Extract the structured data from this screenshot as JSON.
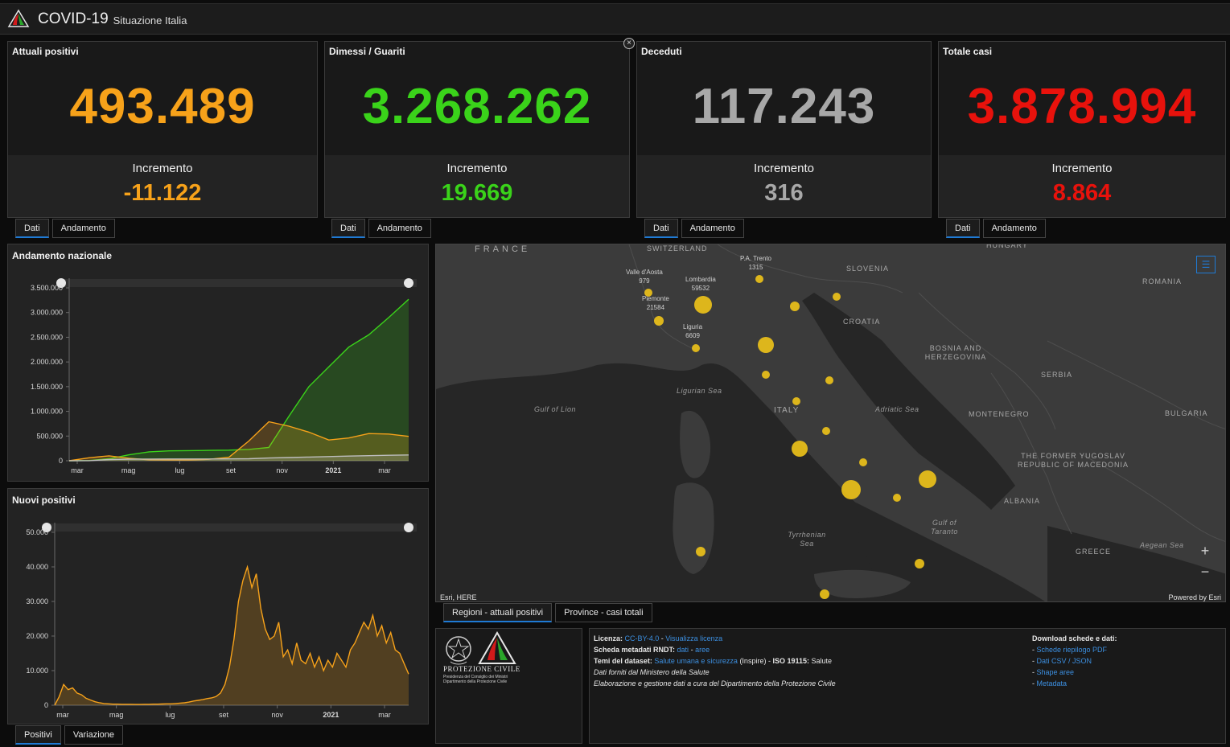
{
  "header": {
    "title": "COVID-19",
    "subtitle": "Situazione Italia"
  },
  "cards": [
    {
      "title": "Attuali positivi",
      "value": "493.489",
      "inc_label": "Incremento",
      "inc_value": "-11.122",
      "color": "#f7a21a",
      "tabs": [
        "Dati",
        "Andamento"
      ]
    },
    {
      "title": "Dimessi / Guariti",
      "value": "3.268.262",
      "inc_label": "Incremento",
      "inc_value": "19.669",
      "color": "#3ad31a",
      "tabs": [
        "Dati",
        "Andamento"
      ]
    },
    {
      "title": "Deceduti",
      "value": "117.243",
      "inc_label": "Incremento",
      "inc_value": "316",
      "color": "#a8a8a8",
      "tabs": [
        "Dati",
        "Andamento"
      ]
    },
    {
      "title": "Totale casi",
      "value": "3.878.994",
      "inc_label": "Incremento",
      "inc_value": "8.864",
      "color": "#e8120c",
      "tabs": [
        "Dati",
        "Andamento"
      ]
    }
  ],
  "chart_data": [
    {
      "type": "area",
      "title": "Andamento nazionale",
      "x_labels": [
        "mar",
        "mag",
        "lug",
        "set",
        "nov",
        "2021",
        "mar"
      ],
      "y_ticks": [
        "0",
        "500.000",
        "1.000.000",
        "1.500.000",
        "2.000.000",
        "2.500.000",
        "3.000.000",
        "3.500.000"
      ],
      "ylim": [
        0,
        3500000
      ],
      "series": [
        {
          "color": "#3ad31a",
          "values": [
            0,
            5000,
            40000,
            120000,
            180000,
            200000,
            205000,
            210000,
            215000,
            230000,
            270000,
            900000,
            1500000,
            1900000,
            2300000,
            2550000,
            2900000,
            3268262
          ]
        },
        {
          "color": "#f7a21a",
          "values": [
            0,
            60000,
            100000,
            50000,
            20000,
            14000,
            15000,
            30000,
            70000,
            400000,
            790000,
            700000,
            580000,
            420000,
            460000,
            550000,
            540000,
            493489
          ]
        },
        {
          "color": "#bdbdbd",
          "values": [
            0,
            2000,
            25000,
            33000,
            35000,
            35500,
            36000,
            36500,
            38000,
            40000,
            55000,
            65000,
            75000,
            85000,
            95000,
            102000,
            110000,
            117243
          ]
        }
      ]
    },
    {
      "type": "area",
      "title": "Nuovi positivi",
      "x_labels": [
        "mar",
        "mag",
        "lug",
        "set",
        "nov",
        "2021",
        "mar"
      ],
      "y_ticks": [
        "0",
        "10.000",
        "20.000",
        "30.000",
        "40.000",
        "50.000"
      ],
      "ylim": [
        0,
        50000
      ],
      "series": [
        {
          "color": "#f7a21a",
          "values": [
            0,
            2500,
            6000,
            4500,
            5000,
            3500,
            3000,
            2000,
            1500,
            1000,
            700,
            500,
            400,
            300,
            300,
            250,
            250,
            250,
            200,
            200,
            250,
            250,
            300,
            300,
            350,
            400,
            400,
            500,
            600,
            700,
            900,
            1200,
            1400,
            1600,
            1900,
            2100,
            2500,
            3500,
            6000,
            11000,
            19000,
            30000,
            36000,
            40000,
            34000,
            38000,
            28000,
            22000,
            19000,
            20000,
            24000,
            14000,
            16000,
            12000,
            18000,
            13000,
            12000,
            15000,
            11000,
            14000,
            10000,
            13000,
            11000,
            15000,
            13000,
            11000,
            16000,
            18000,
            21000,
            24000,
            22000,
            26000,
            20000,
            23000,
            18000,
            21000,
            16000,
            15000,
            12000,
            9000
          ]
        }
      ]
    }
  ],
  "chart_tabs": [
    "Positivi",
    "Variazione"
  ],
  "map": {
    "countries": [
      "FRANCE",
      "SWITZERLAND",
      "HUNGARY",
      "SLOVENIA",
      "ROMANIA",
      "CROATIA",
      "BOSNIA AND HERZEGOVINA",
      "SERBIA",
      "ITALY",
      "MONTENEGRO",
      "BULGARIA",
      "THE FORMER YUGOSLAV REPUBLIC OF MACEDONIA",
      "ALBANIA",
      "GREECE"
    ],
    "seas": [
      "Gulf of Lion",
      "Ligurian Sea",
      "Adriatic Sea",
      "Tyrrhenian Sea",
      "Gulf of Taranto",
      "Aegean Sea"
    ],
    "regions": [
      {
        "name": "Valle d'Aosta",
        "value": "979"
      },
      {
        "name": "Lombardia",
        "value": "59532"
      },
      {
        "name": "Piemonte",
        "value": "21584"
      },
      {
        "name": "Liguria",
        "value": "6609"
      },
      {
        "name": "P.A. Trento",
        "value": "1315"
      }
    ],
    "credit_left": "Esri, HERE",
    "credit_right": "Powered by Esri",
    "zoom_in": "+",
    "zoom_out": "−",
    "tabs": [
      "Regioni - attuali positivi",
      "Province - casi totali"
    ]
  },
  "info": {
    "logo_text": "PROTEZIONE CIVILE",
    "logo_sub1": "Presidenza del Consiglio dei Ministri",
    "logo_sub2": "Dipartimento della Protezione Civile",
    "licenza_label": "Licenza:",
    "licenza_value": "CC-BY-4.0",
    "licenza_sep": " - ",
    "licenza_link": "Visualizza licenza",
    "metadati_label": "Scheda metadati RNDT:",
    "metadati_link1": "dati",
    "metadati_sep": " - ",
    "metadati_link2": "aree",
    "temi_label": "Temi del dataset:",
    "temi_link": "Salute umana e sicurezza",
    "temi_rest": " (Inspire) - ",
    "temi_iso": "ISO 19115:",
    "temi_iso_value": " Salute",
    "dati_forniti": "Dati forniti dal Ministero della Salute",
    "elaborazione": "Elaborazione e gestione dati a cura del Dipartimento della Protezione Civile",
    "download_title": "Download schede e dati:",
    "downloads": [
      "Schede riepilogo PDF",
      "Dati CSV / JSON",
      "Shape aree",
      "Metadata"
    ]
  }
}
